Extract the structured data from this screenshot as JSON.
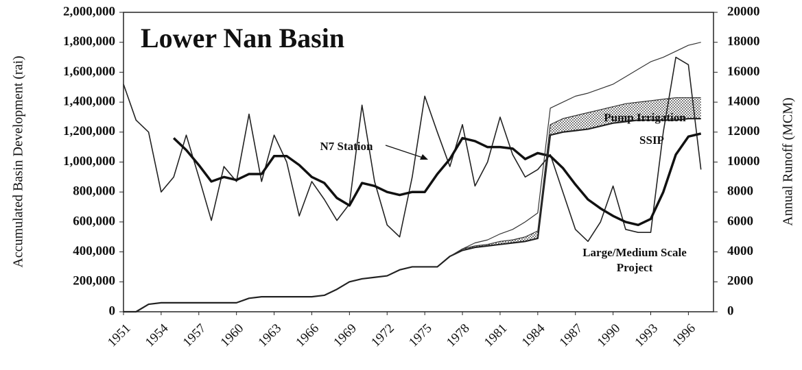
{
  "chart_data": {
    "type": "line",
    "title": "Lower Nan Basin",
    "y_label": "Accumulated Basin Development (rai)",
    "y2_label": "Annual Runoff (MCM)",
    "x": [
      1951,
      1952,
      1953,
      1954,
      1955,
      1956,
      1957,
      1958,
      1959,
      1960,
      1961,
      1962,
      1963,
      1964,
      1965,
      1966,
      1967,
      1968,
      1969,
      1970,
      1971,
      1972,
      1973,
      1974,
      1975,
      1976,
      1977,
      1978,
      1979,
      1980,
      1981,
      1982,
      1983,
      1984,
      1985,
      1986,
      1987,
      1988,
      1989,
      1990,
      1991,
      1992,
      1993,
      1994,
      1995,
      1996,
      1997
    ],
    "xlim": [
      1951,
      1998
    ],
    "xticks": [
      1951,
      1954,
      1957,
      1960,
      1963,
      1966,
      1969,
      1972,
      1975,
      1978,
      1981,
      1984,
      1987,
      1990,
      1993,
      1996
    ],
    "ylim": [
      0,
      2000000
    ],
    "yticks": [
      {
        "value": 0,
        "label": "0"
      },
      {
        "value": 200000,
        "label": "200,000"
      },
      {
        "value": 400000,
        "label": "400,000"
      },
      {
        "value": 600000,
        "label": "600,000"
      },
      {
        "value": 800000,
        "label": "800,000"
      },
      {
        "value": 1000000,
        "label": "1,000,000"
      },
      {
        "value": 1200000,
        "label": "1,200,000"
      },
      {
        "value": 1400000,
        "label": "1,400,000"
      },
      {
        "value": 1600000,
        "label": "1,600,000"
      },
      {
        "value": 1800000,
        "label": "1,800,000"
      },
      {
        "value": 2000000,
        "label": "2,000,000"
      }
    ],
    "y2lim": [
      0,
      20000
    ],
    "y2ticks": [
      0,
      2000,
      4000,
      6000,
      8000,
      10000,
      12000,
      14000,
      16000,
      18000,
      20000
    ],
    "series": [
      {
        "name": "N7 Station",
        "axis": "y2",
        "color": "#222",
        "width": 1.6,
        "values": [
          15200,
          12800,
          12000,
          8000,
          9000,
          11800,
          9000,
          6100,
          9700,
          8700,
          13200,
          8700,
          11800,
          10000,
          6400,
          8700,
          7500,
          6100,
          7200,
          13800,
          8700,
          5800,
          5000,
          9000,
          14400,
          12000,
          9700,
          12500,
          8400,
          10000,
          13000,
          10500,
          9000,
          9500,
          10500,
          8000,
          5500,
          4700,
          6000,
          8400,
          5500,
          5300,
          5300,
          12000,
          17000,
          16500,
          9500
        ]
      },
      {
        "axis": "y2",
        "color": "#111",
        "width": 3.5,
        "values": [
          null,
          null,
          null,
          null,
          11600,
          10800,
          9800,
          8700,
          9000,
          8800,
          9200,
          9200,
          10400,
          10400,
          9800,
          9000,
          8600,
          7600,
          7100,
          8600,
          8400,
          8000,
          7800,
          8000,
          8000,
          9200,
          10200,
          11600,
          11400,
          11000,
          11000,
          10900,
          10200,
          10600,
          10400,
          9600,
          8500,
          7500,
          6900,
          6400,
          6000,
          5800,
          6200,
          8000,
          10500,
          11700,
          11900
        ]
      },
      {
        "name": "Large/Medium Scale Project",
        "axis": "y",
        "color": "#222",
        "width": 2.2,
        "values": [
          0,
          0,
          50000,
          60000,
          60000,
          60000,
          60000,
          60000,
          60000,
          60000,
          90000,
          100000,
          100000,
          100000,
          100000,
          100000,
          110000,
          150000,
          200000,
          220000,
          230000,
          240000,
          280000,
          300000,
          300000,
          300000,
          370000,
          410000,
          430000,
          440000,
          450000,
          460000,
          470000,
          490000,
          1180000,
          1200000,
          1210000,
          1220000,
          1240000,
          1260000,
          1270000,
          1280000,
          1280000,
          1280000,
          1280000,
          1290000,
          1290000
        ]
      },
      {
        "name": "Pump Irrigation",
        "axis": "y",
        "color": "#333",
        "width": 1.2,
        "values": [
          null,
          null,
          null,
          null,
          null,
          null,
          null,
          null,
          null,
          null,
          null,
          null,
          null,
          null,
          null,
          null,
          null,
          null,
          null,
          null,
          null,
          null,
          null,
          null,
          null,
          null,
          370000,
          420000,
          440000,
          450000,
          470000,
          480000,
          500000,
          540000,
          1250000,
          1290000,
          1310000,
          1330000,
          1350000,
          1370000,
          1390000,
          1400000,
          1410000,
          1420000,
          1430000,
          1430000,
          1430000
        ]
      },
      {
        "name": "SSIP",
        "axis": "y",
        "color": "#333",
        "width": 1.2,
        "values": [
          null,
          null,
          null,
          null,
          null,
          null,
          null,
          null,
          null,
          null,
          null,
          null,
          null,
          null,
          null,
          null,
          null,
          null,
          null,
          null,
          null,
          null,
          null,
          null,
          null,
          null,
          370000,
          420000,
          460000,
          480000,
          520000,
          550000,
          600000,
          660000,
          1360000,
          1400000,
          1440000,
          1460000,
          1490000,
          1520000,
          1570000,
          1620000,
          1670000,
          1700000,
          1740000,
          1780000,
          1800000
        ]
      }
    ]
  }
}
